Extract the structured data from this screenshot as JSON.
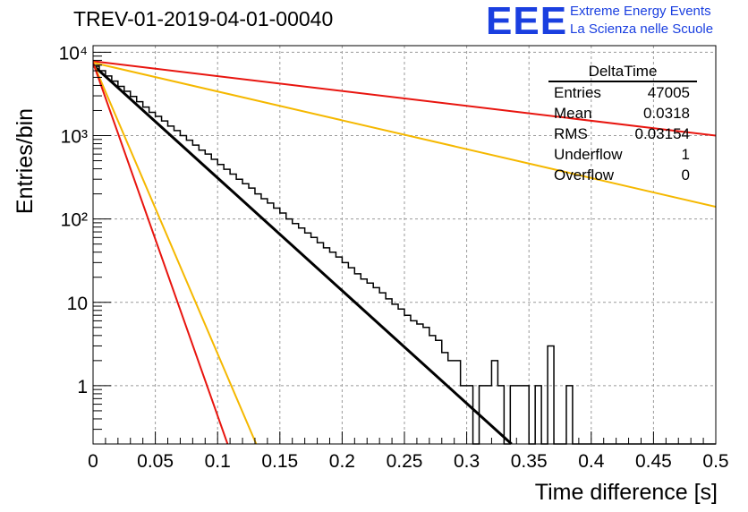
{
  "title": "TREV-01-2019-04-01-00040",
  "brand": {
    "logo": "EEE",
    "line1": "Extreme Energy Events",
    "line2": "La Scienza nelle Scuole"
  },
  "stats": {
    "title": "DeltaTime",
    "rows": [
      {
        "label": "Entries",
        "value": "47005"
      },
      {
        "label": "Mean",
        "value": "0.0318"
      },
      {
        "label": "RMS",
        "value": "0.03154"
      },
      {
        "label": "Underflow",
        "value": "1"
      },
      {
        "label": "Overflow",
        "value": "0"
      }
    ]
  },
  "colors": {
    "fit": "#000000",
    "red": "#e8150f",
    "orange": "#f5b800",
    "grid": "#9a9a9a"
  },
  "chart_data": {
    "type": "histogram",
    "xlabel": "Time difference [s]",
    "ylabel": "Entries/bin",
    "xlim": [
      0,
      0.5
    ],
    "ylim": [
      0.2,
      12000
    ],
    "log_y": true,
    "grid": true,
    "x_ticks": [
      "0",
      "0.05",
      "0.1",
      "0.15",
      "0.2",
      "0.25",
      "0.3",
      "0.35",
      "0.4",
      "0.45",
      "0.5"
    ],
    "y_ticks": [
      {
        "value": 1,
        "label": "1"
      },
      {
        "value": 10,
        "label": "10"
      },
      {
        "value": 100,
        "label": "10²"
      },
      {
        "value": 1000,
        "label": "10³"
      },
      {
        "value": 10000,
        "label": "10⁴"
      }
    ],
    "bin_width": 0.005,
    "histogram": {
      "name": "DeltaTime",
      "counts": [
        6800,
        6000,
        5200,
        4500,
        3900,
        3400,
        2950,
        2550,
        2200,
        1900,
        1700,
        1500,
        1300,
        1150,
        1000,
        880,
        770,
        670,
        600,
        520,
        450,
        395,
        345,
        300,
        265,
        235,
        200,
        175,
        155,
        135,
        118,
        100,
        88,
        78,
        68,
        60,
        52,
        45,
        40,
        35,
        30,
        26,
        22,
        19,
        17,
        15,
        13,
        11,
        9.5,
        8.3,
        7,
        6,
        5.5,
        5,
        4,
        3.5,
        2.5,
        2,
        2,
        1,
        1,
        0,
        1,
        1,
        2,
        1,
        0,
        1,
        1,
        1,
        0,
        1,
        0,
        3,
        0,
        0,
        1,
        0,
        0,
        0,
        0,
        0,
        0,
        0,
        0,
        0,
        0,
        0,
        0,
        0,
        0,
        0,
        0,
        0,
        0,
        0,
        0,
        0,
        0,
        0
      ]
    },
    "lines": [
      {
        "name": "fit",
        "color": "black",
        "points": [
          [
            0,
            7000
          ],
          [
            0.336,
            0.2
          ]
        ]
      },
      {
        "name": "red-slow",
        "color": "red",
        "points": [
          [
            0,
            7800
          ],
          [
            0.5,
            1000
          ]
        ]
      },
      {
        "name": "orange-slow",
        "color": "orange",
        "points": [
          [
            0,
            7500
          ],
          [
            0.5,
            140
          ]
        ]
      },
      {
        "name": "orange-fast",
        "color": "orange",
        "points": [
          [
            0,
            7500
          ],
          [
            0.131,
            0.2
          ]
        ]
      },
      {
        "name": "red-fast",
        "color": "red",
        "points": [
          [
            0,
            7500
          ],
          [
            0.108,
            0.2
          ]
        ]
      }
    ]
  }
}
